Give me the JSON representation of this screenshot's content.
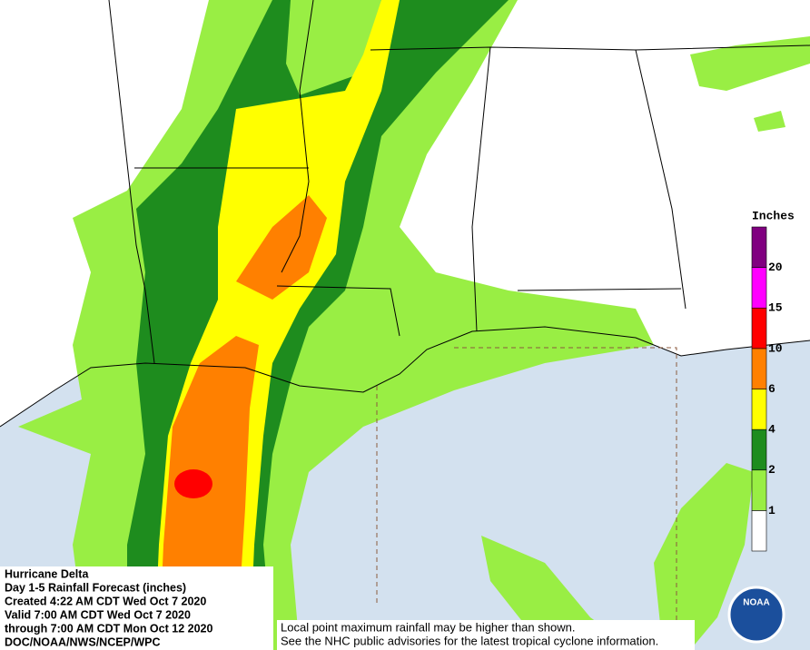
{
  "info": {
    "lines": [
      "Hurricane Delta",
      "Day 1-5 Rainfall Forecast (inches)",
      "Created 4:22 AM CDT Wed Oct 7 2020",
      "Valid 7:00 AM CDT Wed Oct 7 2020",
      "through 7:00 AM CDT Mon Oct 12 2020",
      "DOC/NOAA/NWS/NCEP/WPC"
    ]
  },
  "note": {
    "lines": [
      "Local point maximum rainfall may be higher than shown.",
      "See the NHC public advisories for the latest tropical cyclone information."
    ]
  },
  "legend": {
    "title": "Inches",
    "ticks": [
      1,
      2,
      4,
      6,
      10,
      15,
      20
    ],
    "colors": [
      "#ffffff",
      "#99ee44",
      "#1e8c1e",
      "#ffff00",
      "#ff8000",
      "#ff0000",
      "#ff00ff",
      "#800080"
    ]
  },
  "logo": {
    "text": "NOAA"
  }
}
